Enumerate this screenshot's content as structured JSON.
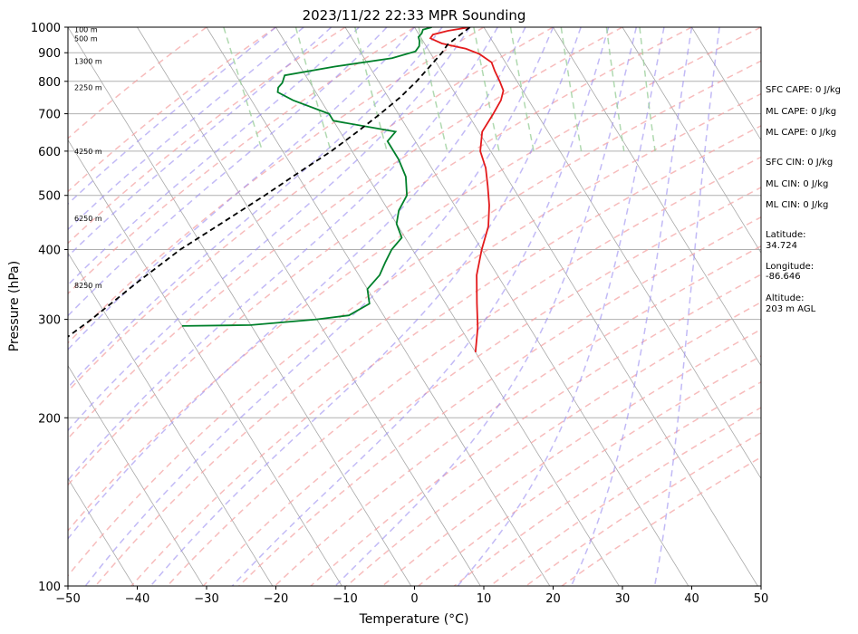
{
  "chart_data": {
    "type": "line",
    "subtype": "skew-t log-p sounding",
    "title": "2023/11/22 22:33 MPR Sounding",
    "xlabel": "Temperature (°C)",
    "ylabel": "Pressure (hPa)",
    "xlim": [
      -50,
      50
    ],
    "ylim": [
      1000,
      100
    ],
    "y_scale": "log",
    "x_ticks": [
      "−50",
      "−40",
      "−30",
      "−20",
      "−10",
      "0",
      "10",
      "20",
      "30",
      "40",
      "50"
    ],
    "y_ticks": [
      100,
      200,
      300,
      400,
      500,
      600,
      700,
      800,
      900,
      1000
    ],
    "grid": true,
    "series": [
      {
        "color": "#e31a1c",
        "points": [
          [
            1000,
            8.0
          ],
          [
            985,
            4.5
          ],
          [
            970,
            2.0
          ],
          [
            955,
            1.3
          ],
          [
            935,
            2.5
          ],
          [
            915,
            5.5
          ],
          [
            895,
            7.0
          ],
          [
            865,
            8.0
          ],
          [
            835,
            7.7
          ],
          [
            800,
            7.5
          ],
          [
            770,
            7.2
          ],
          [
            740,
            6.0
          ],
          [
            700,
            3.7
          ],
          [
            650,
            0.5
          ],
          [
            600,
            -1.5
          ],
          [
            560,
            -2.2
          ],
          [
            520,
            -3.5
          ],
          [
            480,
            -5.0
          ],
          [
            440,
            -7.0
          ],
          [
            400,
            -10.0
          ],
          [
            360,
            -13.0
          ],
          [
            320,
            -15.5
          ],
          [
            290,
            -17.5
          ],
          [
            262,
            -20.0
          ]
        ]
      },
      {
        "color": "#00802b",
        "points": [
          [
            1000,
            2.5
          ],
          [
            990,
            1.0
          ],
          [
            975,
            0.5
          ],
          [
            960,
            -0.3
          ],
          [
            945,
            -0.5
          ],
          [
            925,
            -1.0
          ],
          [
            905,
            -2.0
          ],
          [
            880,
            -6.0
          ],
          [
            850,
            -15.0
          ],
          [
            820,
            -23.0
          ],
          [
            795,
            -24.0
          ],
          [
            780,
            -25.0
          ],
          [
            765,
            -25.5
          ],
          [
            740,
            -24.0
          ],
          [
            700,
            -20.0
          ],
          [
            680,
            -20.0
          ],
          [
            650,
            -12.0
          ],
          [
            625,
            -14.0
          ],
          [
            580,
            -14.0
          ],
          [
            540,
            -14.5
          ],
          [
            500,
            -16.0
          ],
          [
            470,
            -18.5
          ],
          [
            445,
            -20.0
          ],
          [
            420,
            -20.5
          ],
          [
            400,
            -23.0
          ],
          [
            380,
            -25.0
          ],
          [
            360,
            -27.0
          ],
          [
            340,
            -30.0
          ],
          [
            320,
            -31.0
          ],
          [
            305,
            -35.0
          ],
          [
            300,
            -40.0
          ],
          [
            293,
            -50.0
          ],
          [
            292,
            -60.0
          ]
        ]
      },
      {
        "color": "#000000",
        "dashed": true,
        "points": [
          [
            1000,
            8.0
          ],
          [
            930,
            3.2
          ],
          [
            900,
            1.7
          ],
          [
            850,
            -1.3
          ],
          [
            800,
            -4.5
          ],
          [
            750,
            -8.2
          ],
          [
            700,
            -12.6
          ],
          [
            650,
            -17.5
          ],
          [
            600,
            -23.0
          ],
          [
            550,
            -29.5
          ],
          [
            500,
            -36.5
          ],
          [
            450,
            -44.5
          ],
          [
            400,
            -53.5
          ],
          [
            350,
            -62.5
          ],
          [
            300,
            -72.5
          ],
          [
            275,
            -78.5
          ]
        ]
      }
    ],
    "height_labels": [
      "100 m",
      "500 m",
      "1300 m",
      "2250 m",
      "4250 m",
      "6250 m",
      "8250 m"
    ],
    "height_label_pressures": [
      990,
      955,
      870,
      780,
      600,
      455,
      345
    ],
    "side_annotations": [
      "SFC CAPE: 0 J/kg",
      "ML CAPE: 0 J/kg",
      "ML CAPE: 0 J/kg",
      "SFC CIN: 0 J/kg",
      "ML CIN: 0 J/kg",
      "ML CIN: 0 J/kg",
      "Latitude:",
      "34.724",
      "Longitude:",
      "-86.646",
      "Altitude:",
      "203 m AGL"
    ],
    "colors": {
      "temperature": "#e31a1c",
      "dewpoint": "#00802b",
      "parcel": "#000000",
      "dry_adiabats": "#f4a0a0",
      "moist_adiabats": "#9a8cf0",
      "mixing_ratio": "#9ccf9c",
      "isotherms": "#a8a8a8"
    }
  }
}
